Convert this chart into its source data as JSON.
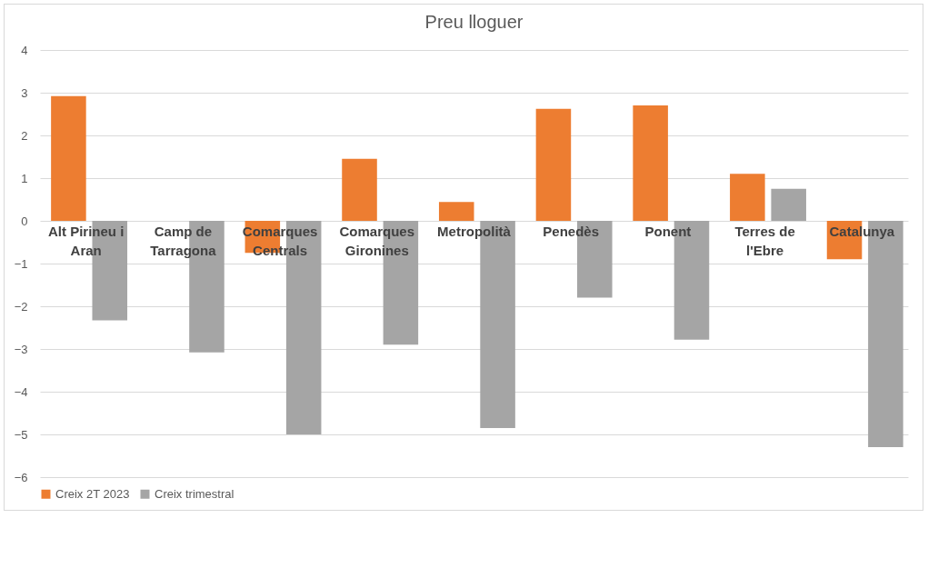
{
  "chart_data": {
    "type": "bar",
    "title": "Preu lloguer",
    "categories": [
      "Alt Pirineu i Aran",
      "Camp de Tarragona",
      "Comarques Centrals",
      "Comarques Gironines",
      "Metropolità",
      "Penedès",
      "Ponent",
      "Terres de l'Ebre",
      "Catalunya"
    ],
    "series": [
      {
        "name": "Creix 2T 2023",
        "color": "#ed7d31",
        "values": [
          2.92,
          null,
          -0.75,
          1.45,
          0.44,
          2.62,
          2.7,
          1.1,
          -0.9
        ]
      },
      {
        "name": "Creix trimestral",
        "color": "#a5a5a5",
        "values": [
          -2.33,
          -3.08,
          -5.0,
          -2.9,
          -4.85,
          -1.8,
          -2.78,
          0.75,
          -5.3
        ]
      }
    ],
    "ylim": [
      -6,
      4
    ],
    "yticks": [
      -6,
      -5,
      -4,
      -3,
      -2,
      -1,
      0,
      1,
      2,
      3,
      4
    ],
    "grid": "y",
    "legend": "bottom"
  }
}
